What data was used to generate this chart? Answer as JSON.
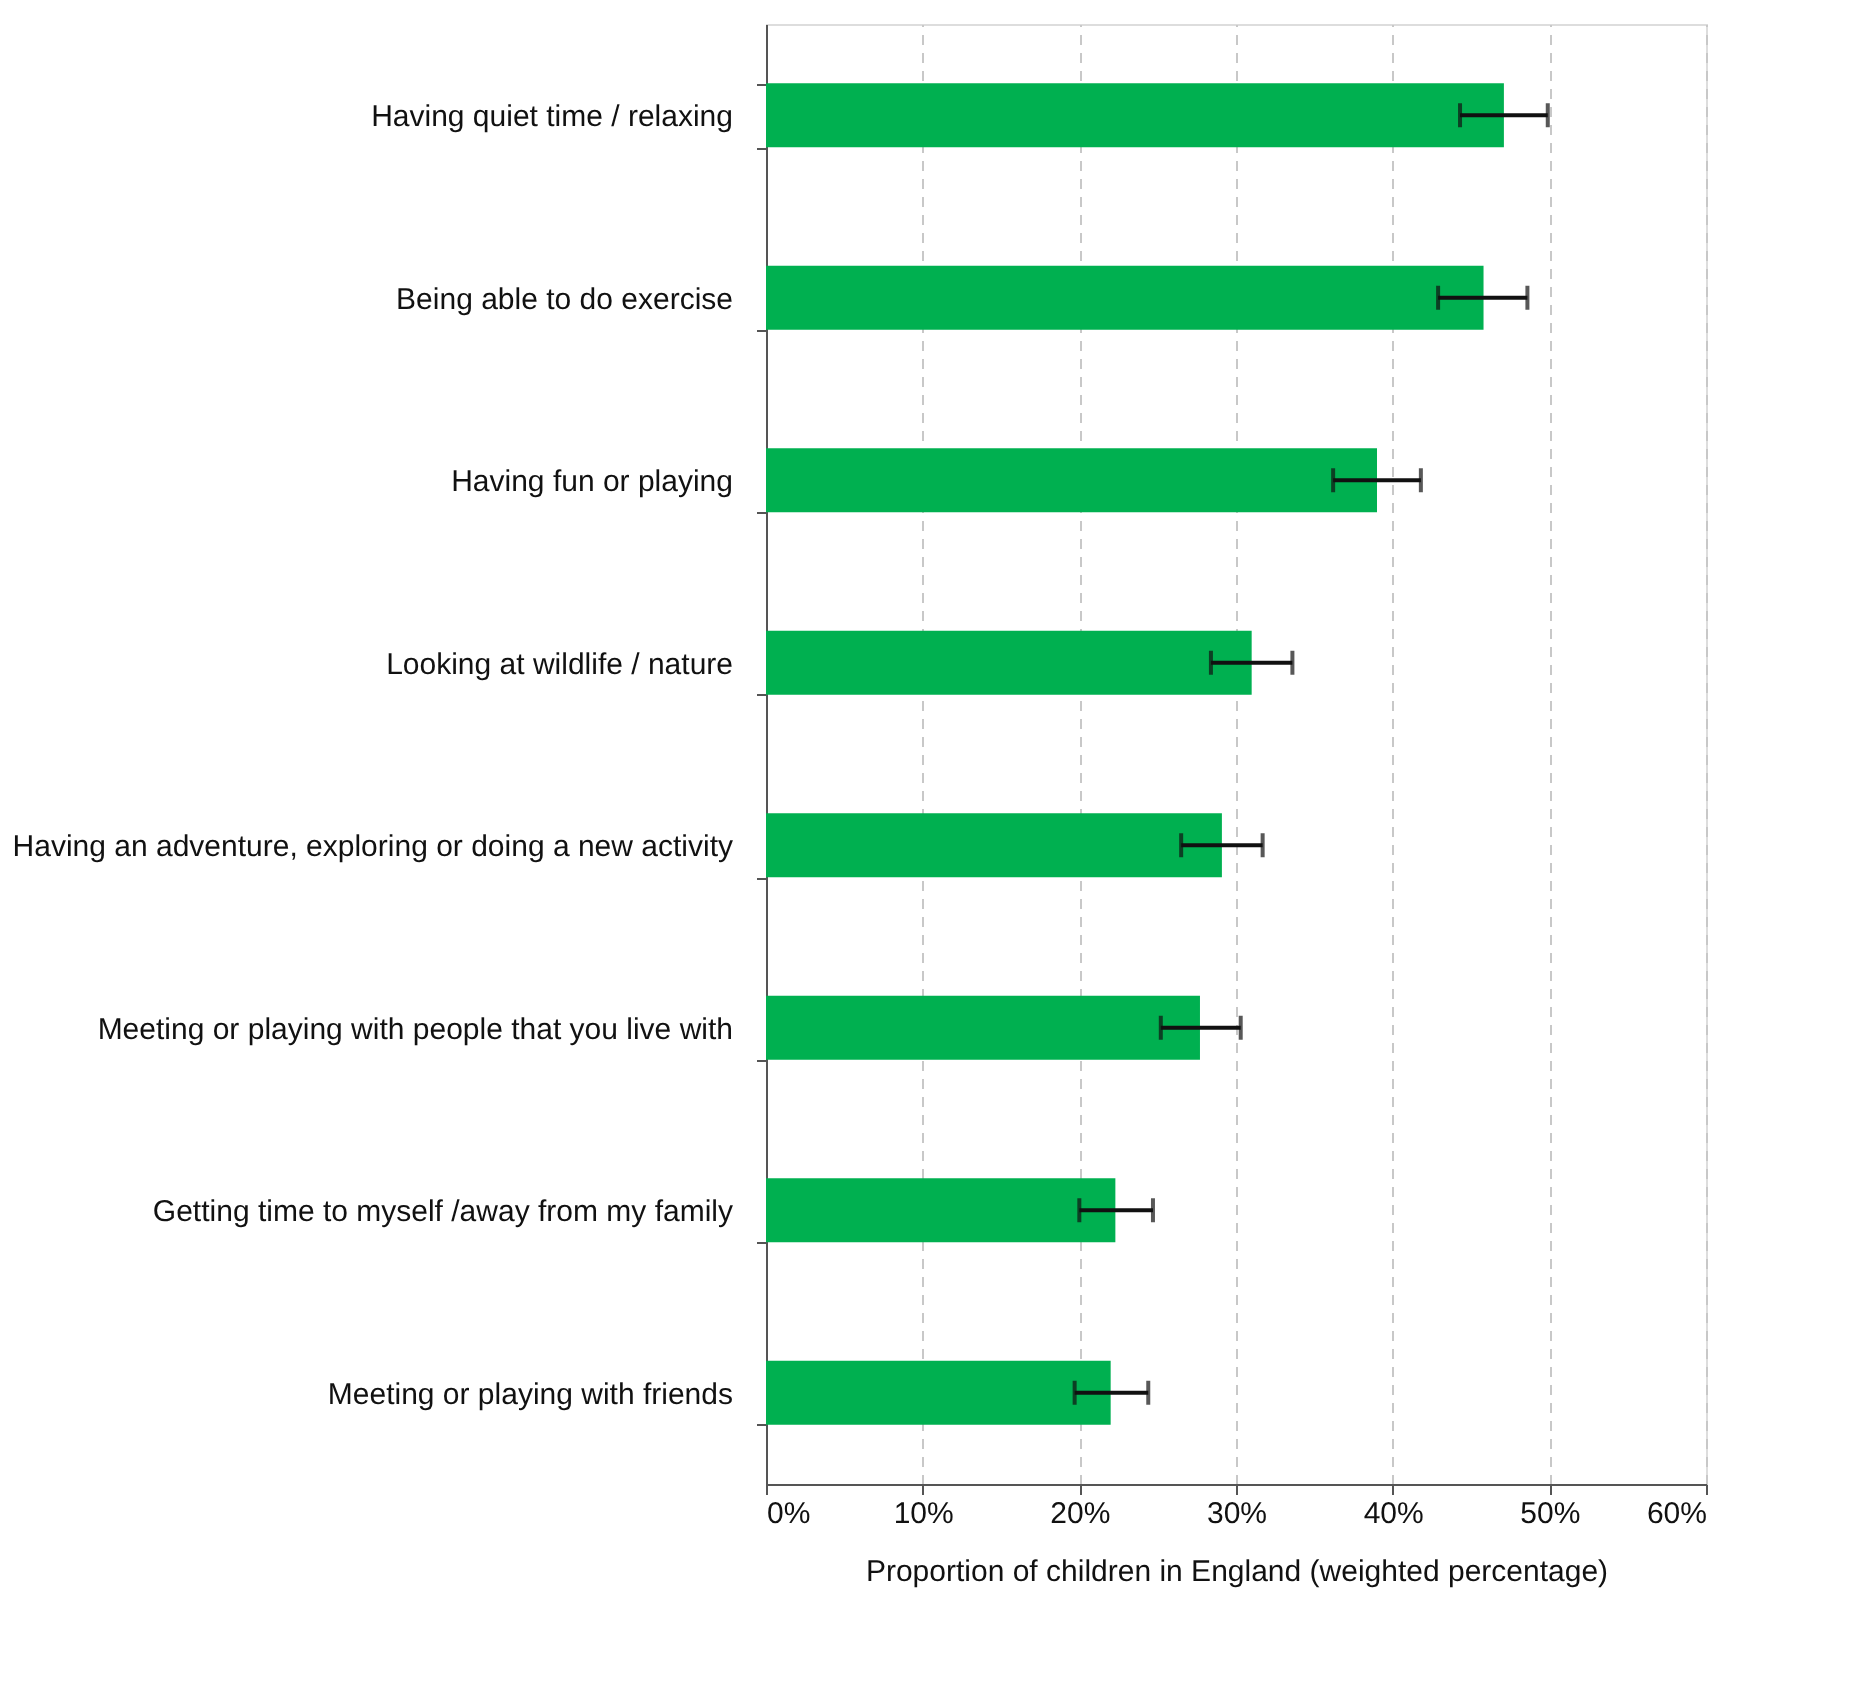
{
  "chart_data": {
    "type": "bar",
    "orientation": "horizontal",
    "xlabel": "Proportion of children in England (weighted percentage)",
    "categories": [
      "Having quiet time / relaxing",
      "Being able to do exercise",
      "Having fun or playing",
      "Looking at wildlife / nature",
      "Having an adventure, exploring or doing a new activity",
      "Meeting or playing with people that you live with",
      "Getting time to myself /away from my family",
      "Meeting or playing with friends"
    ],
    "values": [
      47.1,
      45.8,
      39.0,
      31.0,
      29.1,
      27.7,
      22.3,
      22.0
    ],
    "errors": [
      [
        44.3,
        49.9
      ],
      [
        42.9,
        48.6
      ],
      [
        36.2,
        41.8
      ],
      [
        28.4,
        33.6
      ],
      [
        26.5,
        31.7
      ],
      [
        25.2,
        30.3
      ],
      [
        20.0,
        24.7
      ],
      [
        19.7,
        24.4
      ]
    ],
    "color": "#00b050",
    "xlim": [
      0,
      60
    ],
    "xticks": [
      {
        "value": 0,
        "label": "0%"
      },
      {
        "value": 10,
        "label": "10%"
      },
      {
        "value": 20,
        "label": "20%"
      },
      {
        "value": 30,
        "label": "30%"
      },
      {
        "value": 40,
        "label": "40%"
      },
      {
        "value": 50,
        "label": "50%"
      },
      {
        "value": 60,
        "label": "60%"
      }
    ],
    "grid": "x"
  }
}
